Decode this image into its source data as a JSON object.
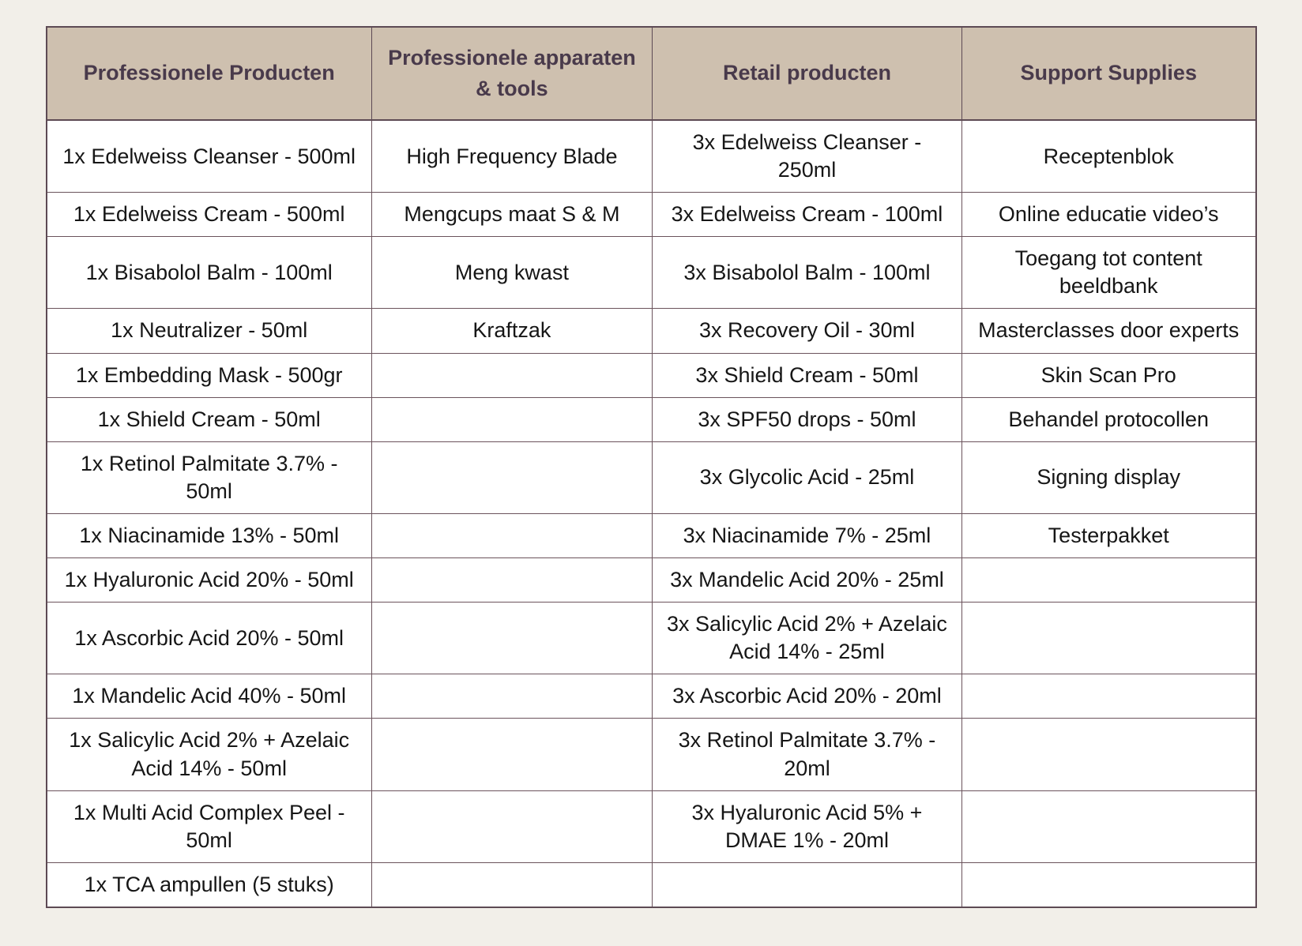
{
  "colors": {
    "page_background": "#f2efe9",
    "header_background": "#cec0af",
    "header_text": "#493a4b",
    "body_text": "#161616",
    "border": "#5d4a54",
    "cell_background": "#ffffff"
  },
  "table": {
    "headers": [
      "Professionele Producten",
      "Professionele apparaten & tools",
      "Retail producten",
      "Support Supplies"
    ],
    "rows": [
      [
        "1x Edelweiss Cleanser - 500ml",
        "High Frequency Blade",
        "3x Edelweiss Cleanser - 250ml",
        "Receptenblok"
      ],
      [
        "1x Edelweiss Cream - 500ml",
        "Mengcups maat S & M",
        "3x Edelweiss Cream - 100ml",
        "Online educatie video’s"
      ],
      [
        "1x Bisabolol Balm - 100ml",
        "Meng kwast",
        "3x Bisabolol Balm - 100ml",
        "Toegang tot content beeldbank"
      ],
      [
        "1x Neutralizer - 50ml",
        "Kraftzak",
        "3x Recovery Oil - 30ml",
        "Masterclasses door experts"
      ],
      [
        "1x Embedding Mask - 500gr",
        "",
        "3x Shield Cream - 50ml",
        "Skin Scan Pro"
      ],
      [
        "1x Shield Cream - 50ml",
        "",
        "3x SPF50 drops - 50ml",
        "Behandel protocollen"
      ],
      [
        "1x Retinol Palmitate 3.7% - 50ml",
        "",
        "3x Glycolic Acid - 25ml",
        "Signing display"
      ],
      [
        "1x Niacinamide 13% - 50ml",
        "",
        "3x Niacinamide 7% - 25ml",
        "Testerpakket"
      ],
      [
        "1x Hyaluronic Acid 20% - 50ml",
        "",
        "3x Mandelic Acid 20% - 25ml",
        ""
      ],
      [
        "1x Ascorbic Acid 20% - 50ml",
        "",
        "3x Salicylic Acid 2% + Azelaic Acid 14% - 25ml",
        ""
      ],
      [
        "1x Mandelic Acid 40% - 50ml",
        "",
        "3x Ascorbic Acid 20% - 20ml",
        ""
      ],
      [
        "1x Salicylic Acid 2% + Azelaic Acid 14% - 50ml",
        "",
        "3x Retinol Palmitate 3.7% - 20ml",
        ""
      ],
      [
        "1x Multi Acid Complex Peel - 50ml",
        "",
        "3x Hyaluronic Acid 5% + DMAE 1% - 20ml",
        ""
      ],
      [
        "1x TCA ampullen (5 stuks)",
        "",
        "",
        ""
      ]
    ]
  }
}
